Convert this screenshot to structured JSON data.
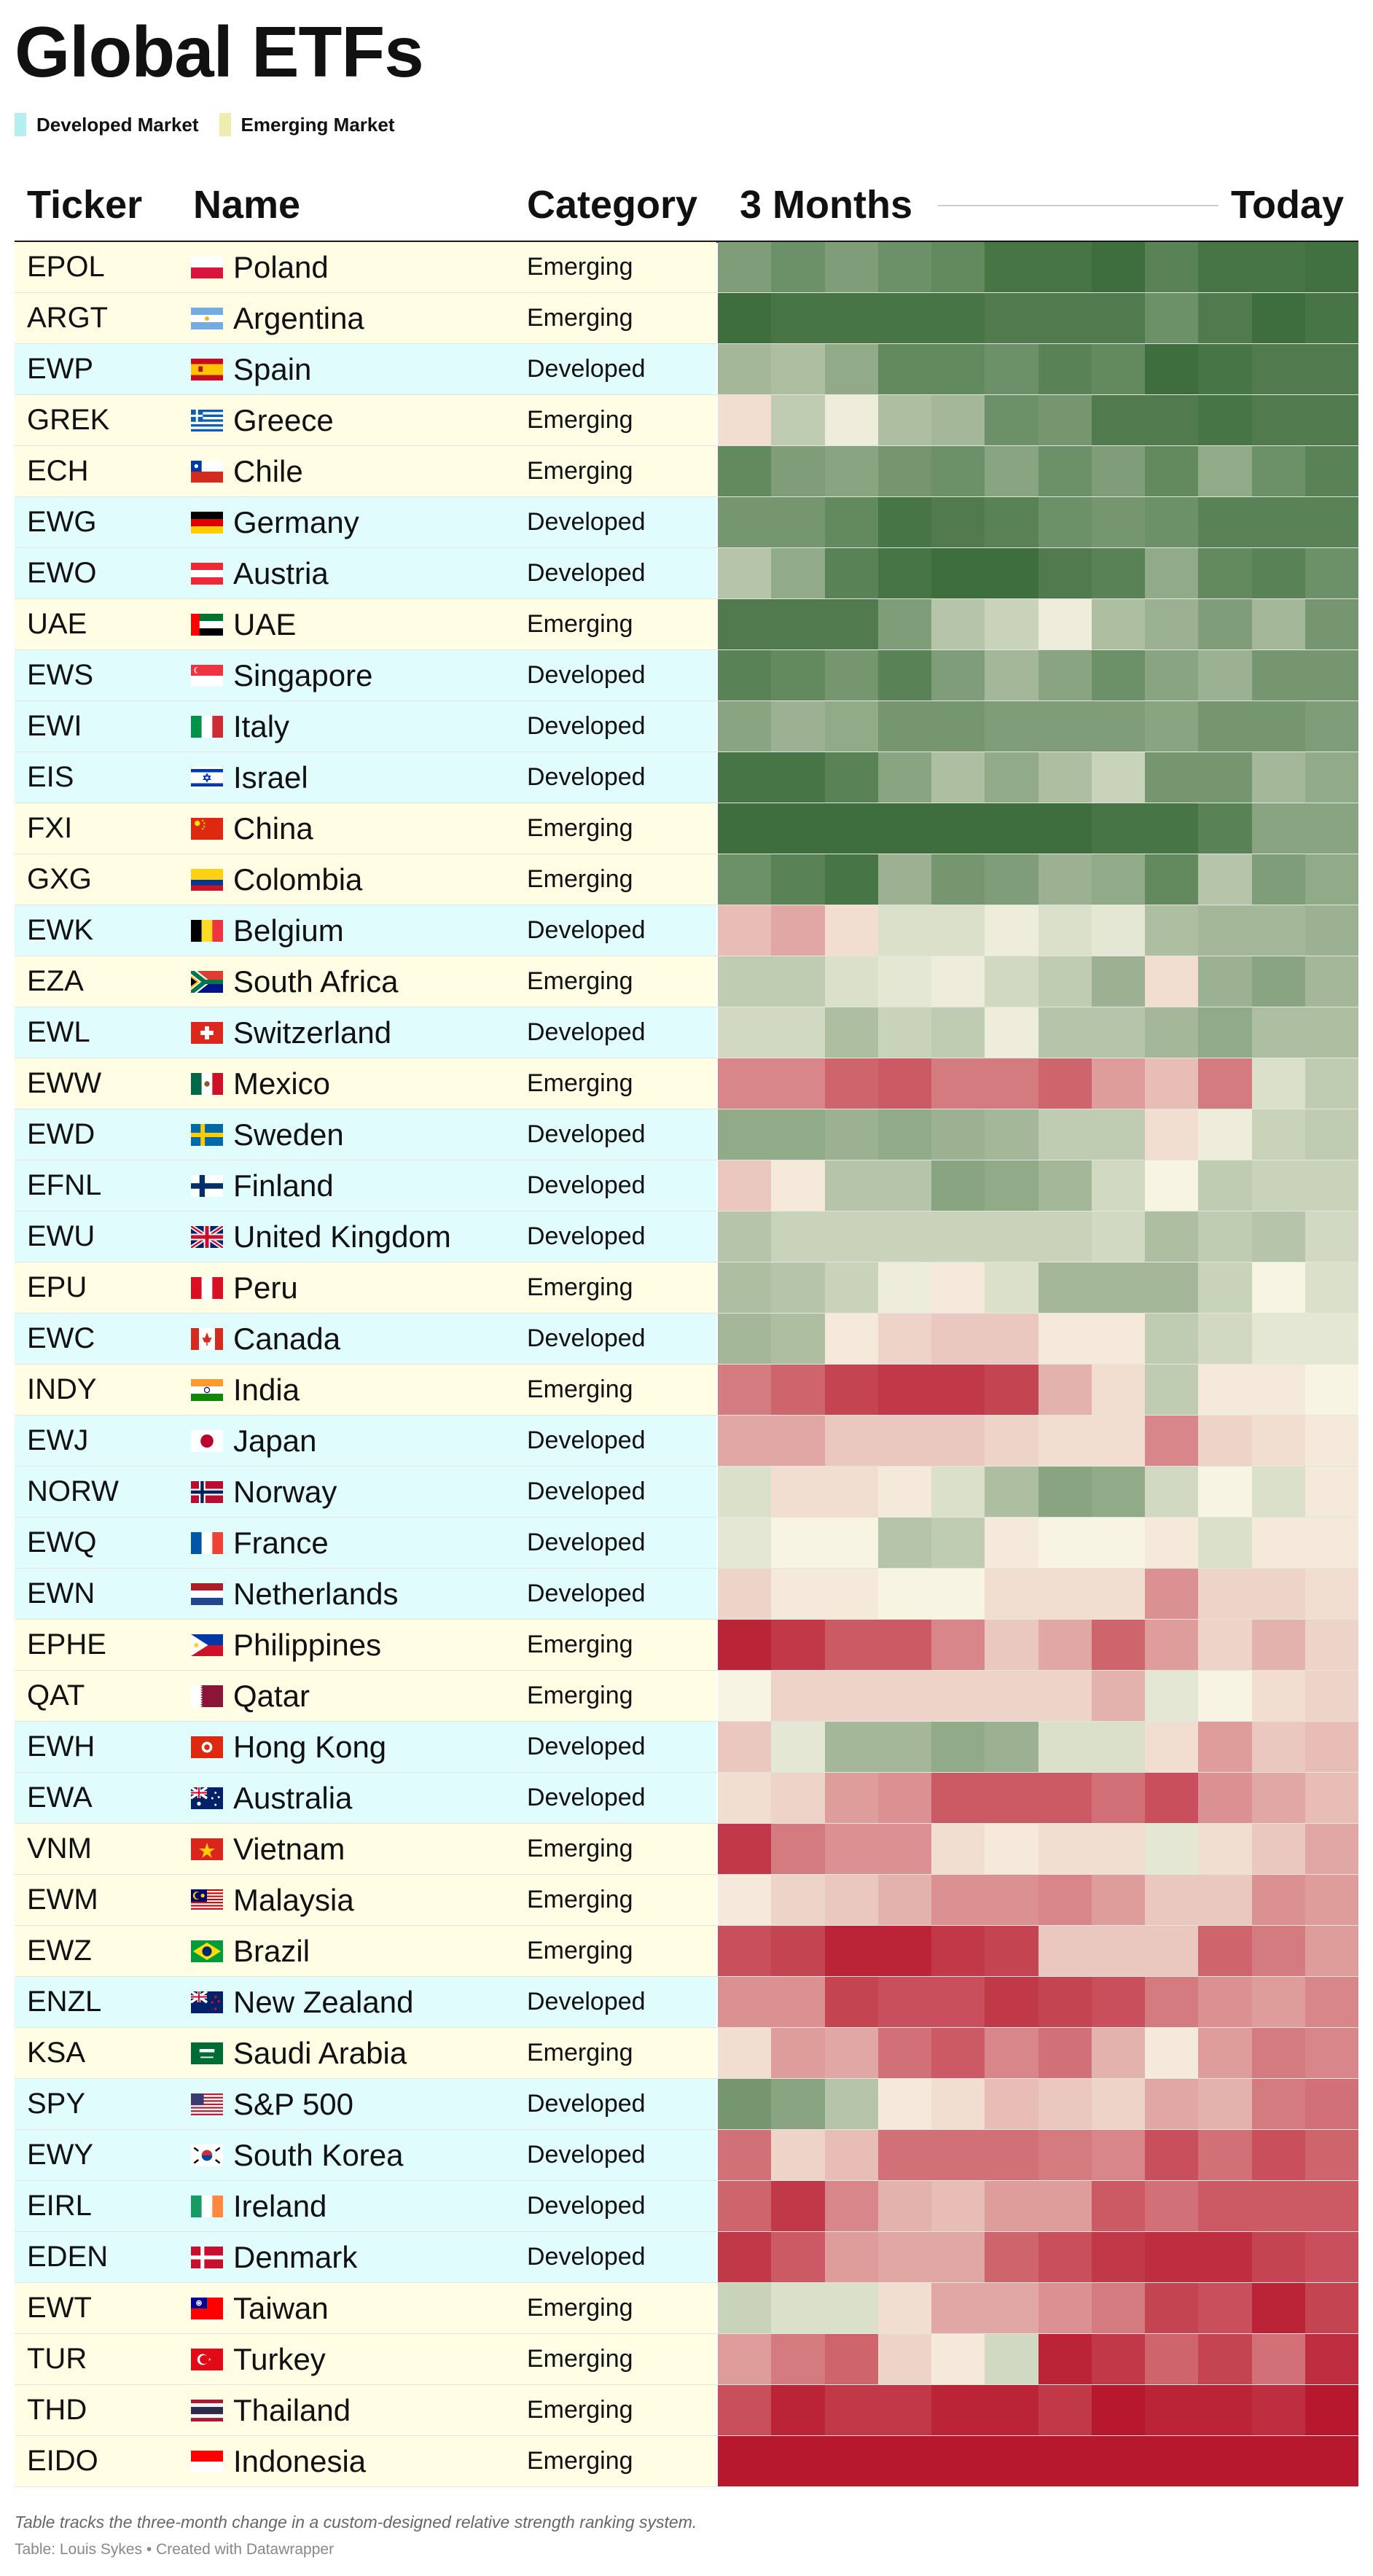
{
  "title": "Global ETFs",
  "legend": [
    {
      "label": "Developed Market",
      "color": "#b5eff0"
    },
    {
      "label": "Emerging Market",
      "color": "#f0ecad"
    }
  ],
  "headers": {
    "ticker": "Ticker",
    "name": "Name",
    "category": "Category",
    "start": "3 Months",
    "end": "Today"
  },
  "colors": {
    "developed_row": "#e0fcfc",
    "emerging_row": "#fffde3",
    "header_rule": "#1a1a1a"
  },
  "footer": {
    "note": "Table tracks the three-month change in a custom-designed relative strength ranking system.",
    "credit": "Table: Louis Sykes • Created with Datawrapper"
  },
  "chart_data": {
    "type": "heatmap",
    "title": "Global ETFs",
    "x": [
      "3 Months",
      "",
      "",
      "",
      "",
      "",
      "",
      "",
      "",
      "",
      "",
      "Today"
    ],
    "color_scale": {
      "low": "#b8182e",
      "mid": "#f7f4e3",
      "high": "#3e6e3e",
      "min": -100,
      "max": 100
    },
    "rows": [
      {
        "ticker": "EPOL",
        "name": "Poland",
        "category": "Emerging",
        "flag": "pl",
        "values": [
          65,
          75,
          65,
          75,
          80,
          95,
          95,
          100,
          85,
          95,
          95,
          98
        ]
      },
      {
        "ticker": "ARGT",
        "name": "Argentina",
        "category": "Emerging",
        "flag": "ar",
        "values": [
          100,
          95,
          95,
          95,
          95,
          90,
          90,
          90,
          75,
          90,
          100,
          95
        ]
      },
      {
        "ticker": "EWP",
        "name": "Spain",
        "category": "Developed",
        "flag": "es",
        "values": [
          45,
          40,
          55,
          80,
          80,
          75,
          85,
          80,
          100,
          95,
          90,
          90
        ]
      },
      {
        "ticker": "GREK",
        "name": "Greece",
        "category": "Emerging",
        "flag": "gr",
        "values": [
          -10,
          30,
          5,
          40,
          45,
          75,
          70,
          90,
          90,
          95,
          90,
          90
        ]
      },
      {
        "ticker": "ECH",
        "name": "Chile",
        "category": "Emerging",
        "flag": "cl",
        "values": [
          80,
          65,
          60,
          70,
          75,
          60,
          75,
          65,
          80,
          55,
          75,
          85
        ]
      },
      {
        "ticker": "EWG",
        "name": "Germany",
        "category": "Developed",
        "flag": "de",
        "values": [
          70,
          70,
          80,
          95,
          90,
          85,
          75,
          70,
          75,
          85,
          85,
          85
        ]
      },
      {
        "ticker": "EWO",
        "name": "Austria",
        "category": "Developed",
        "flag": "at",
        "values": [
          35,
          55,
          85,
          95,
          100,
          100,
          90,
          85,
          55,
          80,
          85,
          75
        ]
      },
      {
        "ticker": "UAE",
        "name": "UAE",
        "category": "Emerging",
        "flag": "ae",
        "values": [
          90,
          90,
          90,
          65,
          35,
          25,
          5,
          40,
          50,
          65,
          45,
          70
        ]
      },
      {
        "ticker": "EWS",
        "name": "Singapore",
        "category": "Developed",
        "flag": "sg",
        "values": [
          85,
          80,
          70,
          85,
          65,
          45,
          60,
          75,
          60,
          50,
          70,
          70
        ]
      },
      {
        "ticker": "EWI",
        "name": "Italy",
        "category": "Developed",
        "flag": "it",
        "values": [
          60,
          50,
          55,
          70,
          70,
          65,
          65,
          65,
          60,
          70,
          70,
          65
        ]
      },
      {
        "ticker": "EIS",
        "name": "Israel",
        "category": "Developed",
        "flag": "il",
        "values": [
          95,
          95,
          85,
          60,
          40,
          55,
          40,
          25,
          70,
          70,
          45,
          55
        ]
      },
      {
        "ticker": "FXI",
        "name": "China",
        "category": "Emerging",
        "flag": "cn",
        "values": [
          100,
          100,
          100,
          100,
          100,
          100,
          100,
          95,
          95,
          85,
          60,
          60
        ]
      },
      {
        "ticker": "GXG",
        "name": "Colombia",
        "category": "Emerging",
        "flag": "co",
        "values": [
          75,
          85,
          95,
          50,
          70,
          65,
          50,
          55,
          80,
          35,
          65,
          55
        ]
      },
      {
        "ticker": "EWK",
        "name": "Belgium",
        "category": "Developed",
        "flag": "be",
        "values": [
          -25,
          -35,
          -10,
          15,
          15,
          5,
          15,
          10,
          40,
          45,
          45,
          50
        ]
      },
      {
        "ticker": "EZA",
        "name": "South Africa",
        "category": "Emerging",
        "flag": "za",
        "values": [
          30,
          30,
          15,
          10,
          5,
          20,
          30,
          50,
          -10,
          50,
          60,
          45
        ]
      },
      {
        "ticker": "EWL",
        "name": "Switzerland",
        "category": "Developed",
        "flag": "ch",
        "values": [
          20,
          20,
          40,
          25,
          30,
          5,
          35,
          35,
          45,
          55,
          40,
          40
        ]
      },
      {
        "ticker": "EWW",
        "name": "Mexico",
        "category": "Emerging",
        "flag": "mx",
        "values": [
          -50,
          -50,
          -65,
          -70,
          -55,
          -55,
          -65,
          -40,
          -25,
          -55,
          15,
          30
        ]
      },
      {
        "ticker": "EWD",
        "name": "Sweden",
        "category": "Developed",
        "flag": "se",
        "values": [
          55,
          55,
          50,
          55,
          50,
          45,
          30,
          30,
          -10,
          5,
          25,
          30
        ]
      },
      {
        "ticker": "EFNL",
        "name": "Finland",
        "category": "Developed",
        "flag": "fi",
        "values": [
          -20,
          -5,
          35,
          35,
          60,
          55,
          45,
          20,
          0,
          30,
          25,
          25
        ]
      },
      {
        "ticker": "EWU",
        "name": "United Kingdom",
        "category": "Developed",
        "flag": "gb",
        "values": [
          35,
          25,
          25,
          25,
          25,
          25,
          25,
          20,
          40,
          30,
          35,
          20
        ]
      },
      {
        "ticker": "EPU",
        "name": "Peru",
        "category": "Emerging",
        "flag": "pe",
        "values": [
          40,
          35,
          25,
          5,
          -5,
          15,
          45,
          45,
          45,
          25,
          0,
          15
        ]
      },
      {
        "ticker": "EWC",
        "name": "Canada",
        "category": "Developed",
        "flag": "ca",
        "values": [
          45,
          40,
          -5,
          -15,
          -20,
          -20,
          -5,
          -5,
          30,
          20,
          10,
          10
        ]
      },
      {
        "ticker": "INDY",
        "name": "India",
        "category": "Emerging",
        "flag": "in",
        "values": [
          -55,
          -65,
          -80,
          -85,
          -85,
          -80,
          -30,
          -10,
          30,
          -5,
          -5,
          0
        ]
      },
      {
        "ticker": "EWJ",
        "name": "Japan",
        "category": "Developed",
        "flag": "jp",
        "values": [
          -35,
          -35,
          -20,
          -20,
          -20,
          -15,
          -10,
          -10,
          -50,
          -15,
          -10,
          -5
        ]
      },
      {
        "ticker": "NORW",
        "name": "Norway",
        "category": "Developed",
        "flag": "no",
        "values": [
          15,
          -10,
          -10,
          -5,
          15,
          40,
          60,
          55,
          20,
          0,
          15,
          -5
        ]
      },
      {
        "ticker": "EWQ",
        "name": "France",
        "category": "Developed",
        "flag": "fr",
        "values": [
          10,
          0,
          0,
          35,
          30,
          -5,
          0,
          0,
          -5,
          15,
          -5,
          -5
        ]
      },
      {
        "ticker": "EWN",
        "name": "Netherlands",
        "category": "Developed",
        "flag": "nl",
        "values": [
          -15,
          -5,
          -5,
          0,
          0,
          -10,
          -10,
          -10,
          -45,
          -15,
          -15,
          -10
        ]
      },
      {
        "ticker": "EPHE",
        "name": "Philippines",
        "category": "Emerging",
        "flag": "ph",
        "values": [
          -95,
          -85,
          -70,
          -70,
          -50,
          -20,
          -35,
          -65,
          -40,
          -15,
          -30,
          -15
        ]
      },
      {
        "ticker": "QAT",
        "name": "Qatar",
        "category": "Emerging",
        "flag": "qa",
        "values": [
          0,
          -15,
          -15,
          -15,
          -15,
          -15,
          -15,
          -30,
          10,
          0,
          -10,
          -15
        ]
      },
      {
        "ticker": "EWH",
        "name": "Hong Kong",
        "category": "Developed",
        "flag": "hk",
        "values": [
          -20,
          10,
          45,
          45,
          55,
          50,
          15,
          15,
          -10,
          -40,
          -20,
          -25
        ]
      },
      {
        "ticker": "EWA",
        "name": "Australia",
        "category": "Developed",
        "flag": "au",
        "values": [
          -10,
          -15,
          -40,
          -45,
          -70,
          -70,
          -70,
          -60,
          -75,
          -45,
          -35,
          -25
        ]
      },
      {
        "ticker": "VNM",
        "name": "Vietnam",
        "category": "Emerging",
        "flag": "vn",
        "values": [
          -85,
          -55,
          -45,
          -45,
          -10,
          -5,
          -10,
          -10,
          10,
          -10,
          -20,
          -35
        ]
      },
      {
        "ticker": "EWM",
        "name": "Malaysia",
        "category": "Emerging",
        "flag": "my",
        "values": [
          -5,
          -15,
          -20,
          -30,
          -45,
          -45,
          -50,
          -40,
          -20,
          -20,
          -45,
          -40
        ]
      },
      {
        "ticker": "EWZ",
        "name": "Brazil",
        "category": "Emerging",
        "flag": "br",
        "values": [
          -75,
          -80,
          -95,
          -95,
          -85,
          -80,
          -20,
          -20,
          -20,
          -65,
          -55,
          -40
        ]
      },
      {
        "ticker": "ENZL",
        "name": "New Zealand",
        "category": "Developed",
        "flag": "nz",
        "values": [
          -45,
          -45,
          -80,
          -75,
          -75,
          -85,
          -80,
          -75,
          -55,
          -45,
          -40,
          -50
        ]
      },
      {
        "ticker": "KSA",
        "name": "Saudi Arabia",
        "category": "Emerging",
        "flag": "sa",
        "values": [
          -10,
          -40,
          -35,
          -60,
          -70,
          -50,
          -60,
          -30,
          -5,
          -40,
          -55,
          -50
        ]
      },
      {
        "ticker": "SPY",
        "name": "S&P 500",
        "category": "Developed",
        "flag": "us",
        "values": [
          70,
          60,
          35,
          -5,
          -10,
          -25,
          -20,
          -15,
          -35,
          -30,
          -55,
          -60
        ]
      },
      {
        "ticker": "EWY",
        "name": "South Korea",
        "category": "Developed",
        "flag": "kr",
        "values": [
          -60,
          -15,
          -25,
          -60,
          -60,
          -60,
          -55,
          -50,
          -75,
          -60,
          -75,
          -65
        ]
      },
      {
        "ticker": "EIRL",
        "name": "Ireland",
        "category": "Developed",
        "flag": "ie",
        "values": [
          -65,
          -85,
          -50,
          -30,
          -25,
          -40,
          -40,
          -70,
          -60,
          -70,
          -70,
          -70
        ]
      },
      {
        "ticker": "EDEN",
        "name": "Denmark",
        "category": "Developed",
        "flag": "dk",
        "values": [
          -85,
          -70,
          -40,
          -35,
          -35,
          -65,
          -75,
          -85,
          -90,
          -90,
          -80,
          -75
        ]
      },
      {
        "ticker": "EWT",
        "name": "Taiwan",
        "category": "Emerging",
        "flag": "tw",
        "values": [
          25,
          15,
          15,
          -10,
          -35,
          -35,
          -45,
          -55,
          -80,
          -75,
          -95,
          -80
        ]
      },
      {
        "ticker": "TUR",
        "name": "Turkey",
        "category": "Emerging",
        "flag": "tr",
        "values": [
          -40,
          -55,
          -65,
          -15,
          -5,
          20,
          -95,
          -85,
          -65,
          -80,
          -60,
          -90
        ]
      },
      {
        "ticker": "THD",
        "name": "Thailand",
        "category": "Emerging",
        "flag": "th",
        "values": [
          -75,
          -95,
          -85,
          -85,
          -95,
          -95,
          -85,
          -100,
          -95,
          -95,
          -90,
          -100
        ]
      },
      {
        "ticker": "EIDO",
        "name": "Indonesia",
        "category": "Emerging",
        "flag": "id",
        "values": [
          -100,
          -100,
          -100,
          -100,
          -100,
          -100,
          -100,
          -100,
          -100,
          -100,
          -100,
          -100
        ]
      }
    ]
  }
}
